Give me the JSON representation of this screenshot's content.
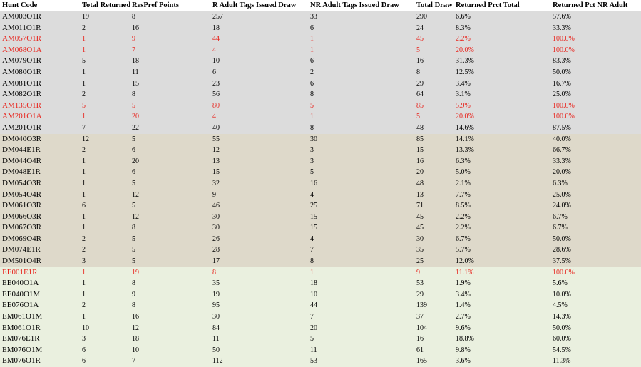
{
  "columns": [
    "Hunt Code",
    "Total Returned",
    "ResPref Points",
    "R Adult Tags Issued Draw",
    "NR Adult Tags Issued Draw",
    "Total Draw",
    "Returned Prct Total",
    "Returned Pct NR Adult"
  ],
  "rows": [
    {
      "group": "am",
      "hl": false,
      "cells": [
        "AM003O1R",
        "19",
        "8",
        "257",
        "33",
        "290",
        "6.6%",
        "57.6%"
      ]
    },
    {
      "group": "am",
      "hl": false,
      "cells": [
        "AM011O1R",
        "2",
        "16",
        "18",
        "6",
        "24",
        "8.3%",
        "33.3%"
      ]
    },
    {
      "group": "am",
      "hl": true,
      "cells": [
        "AM057O1R",
        "1",
        "9",
        "44",
        "1",
        "45",
        "2.2%",
        "100.0%"
      ]
    },
    {
      "group": "am",
      "hl": true,
      "cells": [
        "AM068O1A",
        "1",
        "7",
        "4",
        "1",
        "5",
        "20.0%",
        "100.0%"
      ]
    },
    {
      "group": "am",
      "hl": false,
      "cells": [
        "AM079O1R",
        "5",
        "18",
        "10",
        "6",
        "16",
        "31.3%",
        "83.3%"
      ]
    },
    {
      "group": "am",
      "hl": false,
      "cells": [
        "AM080O1R",
        "1",
        "11",
        "6",
        "2",
        "8",
        "12.5%",
        "50.0%"
      ]
    },
    {
      "group": "am",
      "hl": false,
      "cells": [
        "AM081O1R",
        "1",
        "15",
        "23",
        "6",
        "29",
        "3.4%",
        "16.7%"
      ]
    },
    {
      "group": "am",
      "hl": false,
      "cells": [
        "AM082O1R",
        "2",
        "8",
        "56",
        "8",
        "64",
        "3.1%",
        "25.0%"
      ]
    },
    {
      "group": "am",
      "hl": true,
      "cells": [
        "AM135O1R",
        "5",
        "5",
        "80",
        "5",
        "85",
        "5.9%",
        "100.0%"
      ]
    },
    {
      "group": "am",
      "hl": true,
      "cells": [
        "AM201O1A",
        "1",
        "20",
        "4",
        "1",
        "5",
        "20.0%",
        "100.0%"
      ]
    },
    {
      "group": "am",
      "hl": false,
      "cells": [
        "AM201O1R",
        "7",
        "22",
        "40",
        "8",
        "48",
        "14.6%",
        "87.5%"
      ]
    },
    {
      "group": "dm",
      "hl": false,
      "cells": [
        "DM040O3R",
        "12",
        "5",
        "55",
        "30",
        "85",
        "14.1%",
        "40.0%"
      ]
    },
    {
      "group": "dm",
      "hl": false,
      "cells": [
        "DM044E1R",
        "2",
        "6",
        "12",
        "3",
        "15",
        "13.3%",
        "66.7%"
      ]
    },
    {
      "group": "dm",
      "hl": false,
      "cells": [
        "DM044O4R",
        "1",
        "20",
        "13",
        "3",
        "16",
        "6.3%",
        "33.3%"
      ]
    },
    {
      "group": "dm",
      "hl": false,
      "cells": [
        "DM048E1R",
        "1",
        "6",
        "15",
        "5",
        "20",
        "5.0%",
        "20.0%"
      ]
    },
    {
      "group": "dm",
      "hl": false,
      "cells": [
        "DM054O3R",
        "1",
        "5",
        "32",
        "16",
        "48",
        "2.1%",
        "6.3%"
      ]
    },
    {
      "group": "dm",
      "hl": false,
      "cells": [
        "DM054O4R",
        "1",
        "12",
        "9",
        "4",
        "13",
        "7.7%",
        "25.0%"
      ]
    },
    {
      "group": "dm",
      "hl": false,
      "cells": [
        "DM061O3R",
        "6",
        "5",
        "46",
        "25",
        "71",
        "8.5%",
        "24.0%"
      ]
    },
    {
      "group": "dm",
      "hl": false,
      "cells": [
        "DM066O3R",
        "1",
        "12",
        "30",
        "15",
        "45",
        "2.2%",
        "6.7%"
      ]
    },
    {
      "group": "dm",
      "hl": false,
      "cells": [
        "DM067O3R",
        "1",
        "8",
        "30",
        "15",
        "45",
        "2.2%",
        "6.7%"
      ]
    },
    {
      "group": "dm",
      "hl": false,
      "cells": [
        "DM069O4R",
        "2",
        "5",
        "26",
        "4",
        "30",
        "6.7%",
        "50.0%"
      ]
    },
    {
      "group": "dm",
      "hl": false,
      "cells": [
        "DM074E1R",
        "2",
        "5",
        "28",
        "7",
        "35",
        "5.7%",
        "28.6%"
      ]
    },
    {
      "group": "dm",
      "hl": false,
      "cells": [
        "DM501O4R",
        "3",
        "5",
        "17",
        "8",
        "25",
        "12.0%",
        "37.5%"
      ]
    },
    {
      "group": "ee",
      "hl": true,
      "cells": [
        "EE001E1R",
        "1",
        "19",
        "8",
        "1",
        "9",
        "11.1%",
        "100.0%"
      ]
    },
    {
      "group": "ee",
      "hl": false,
      "cells": [
        "EE040O1A",
        "1",
        "8",
        "35",
        "18",
        "53",
        "1.9%",
        "5.6%"
      ]
    },
    {
      "group": "ee",
      "hl": false,
      "cells": [
        "EE040O1M",
        "1",
        "9",
        "19",
        "10",
        "29",
        "3.4%",
        "10.0%"
      ]
    },
    {
      "group": "ee",
      "hl": false,
      "cells": [
        "EE076O1A",
        "2",
        "8",
        "95",
        "44",
        "139",
        "1.4%",
        "4.5%"
      ]
    },
    {
      "group": "ee",
      "hl": false,
      "cells": [
        "EM061O1M",
        "1",
        "16",
        "30",
        "7",
        "37",
        "2.7%",
        "14.3%"
      ]
    },
    {
      "group": "ee",
      "hl": false,
      "cells": [
        "EM061O1R",
        "10",
        "12",
        "84",
        "20",
        "104",
        "9.6%",
        "50.0%"
      ]
    },
    {
      "group": "ee",
      "hl": false,
      "cells": [
        "EM076E1R",
        "3",
        "18",
        "11",
        "5",
        "16",
        "18.8%",
        "60.0%"
      ]
    },
    {
      "group": "ee",
      "hl": false,
      "cells": [
        "EM076O1M",
        "6",
        "10",
        "50",
        "11",
        "61",
        "9.8%",
        "54.5%"
      ]
    },
    {
      "group": "ee",
      "hl": false,
      "cells": [
        "EM076O1R",
        "6",
        "7",
        "112",
        "53",
        "165",
        "3.6%",
        "11.3%"
      ]
    }
  ],
  "colors": {
    "am_bg": "#dcdcdc",
    "dm_bg": "#ded9ca",
    "ee_bg": "#eaf0df",
    "highlight_text": "#e8251e"
  }
}
